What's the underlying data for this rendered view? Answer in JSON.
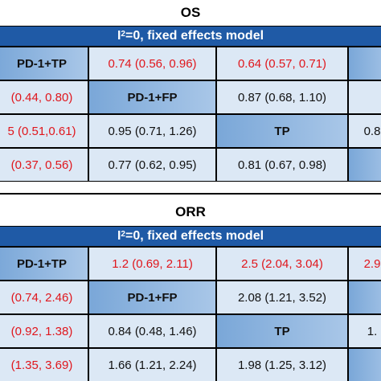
{
  "chart_data": [
    {
      "type": "table",
      "title": "OS",
      "subtitle_prefix": "I",
      "subtitle_sup": "2",
      "subtitle_suffix": "=0, fixed effects model",
      "rows": [
        [
          {
            "text": "PD-1+TP",
            "diag": true,
            "color": "black"
          },
          {
            "text": "0.74 (0.56, 0.96)",
            "diag": false,
            "color": "red"
          },
          {
            "text": "0.64 (0.57, 0.71)",
            "diag": false,
            "color": "red"
          },
          {
            "text": "",
            "diag": true,
            "color": "black"
          }
        ],
        [
          {
            "text": "(0.44, 0.80)",
            "diag": false,
            "color": "red"
          },
          {
            "text": "PD-1+FP",
            "diag": true,
            "color": "black"
          },
          {
            "text": "0.87 (0.68, 1.10)",
            "diag": false,
            "color": "black"
          },
          {
            "text": "",
            "diag": false,
            "color": "black"
          }
        ],
        [
          {
            "text": "5 (0.51,0.61)",
            "diag": false,
            "color": "red"
          },
          {
            "text": "0.95 (0.71, 1.26)",
            "diag": false,
            "color": "black"
          },
          {
            "text": "TP",
            "diag": true,
            "color": "black"
          },
          {
            "text": "0.8",
            "diag": false,
            "color": "black"
          }
        ],
        [
          {
            "text": "(0.37, 0.56)",
            "diag": false,
            "color": "red"
          },
          {
            "text": "0.77 (0.62, 0.95)",
            "diag": false,
            "color": "black"
          },
          {
            "text": "0.81 (0.67, 0.98)",
            "diag": false,
            "color": "black"
          },
          {
            "text": "",
            "diag": true,
            "color": "black"
          }
        ]
      ]
    },
    {
      "type": "table",
      "title": "ORR",
      "subtitle_prefix": "I",
      "subtitle_sup": "2",
      "subtitle_suffix": "=0, fixed effects model",
      "rows": [
        [
          {
            "text": "PD-1+TP",
            "diag": true,
            "color": "black"
          },
          {
            "text": "1.2 (0.69, 2.11)",
            "diag": false,
            "color": "red"
          },
          {
            "text": "2.5 (2.04, 3.04)",
            "diag": false,
            "color": "red"
          },
          {
            "text": "2.9",
            "diag": false,
            "color": "red"
          }
        ],
        [
          {
            "text": "(0.74, 2.46)",
            "diag": false,
            "color": "red"
          },
          {
            "text": "PD-1+FP",
            "diag": true,
            "color": "black"
          },
          {
            "text": "2.08 (1.21, 3.52)",
            "diag": false,
            "color": "black"
          },
          {
            "text": "",
            "diag": true,
            "color": "black"
          }
        ],
        [
          {
            "text": "(0.92, 1.38)",
            "diag": false,
            "color": "red"
          },
          {
            "text": "0.84 (0.48, 1.46)",
            "diag": false,
            "color": "black"
          },
          {
            "text": "TP",
            "diag": true,
            "color": "black"
          },
          {
            "text": "1.",
            "diag": false,
            "color": "black"
          }
        ],
        [
          {
            "text": "(1.35, 3.69)",
            "diag": false,
            "color": "red"
          },
          {
            "text": "1.66 (1.21, 2.24)",
            "diag": false,
            "color": "black"
          },
          {
            "text": "1.98 (1.25, 3.12)",
            "diag": false,
            "color": "black"
          },
          {
            "text": "",
            "diag": true,
            "color": "black"
          }
        ]
      ]
    }
  ],
  "colors": {
    "header_bar": "#1f5aa6",
    "cell_bg": "#dce8f5",
    "diag_bg": "#8fb4df",
    "significant_text": "#e0161c",
    "normal_text": "#111111"
  }
}
